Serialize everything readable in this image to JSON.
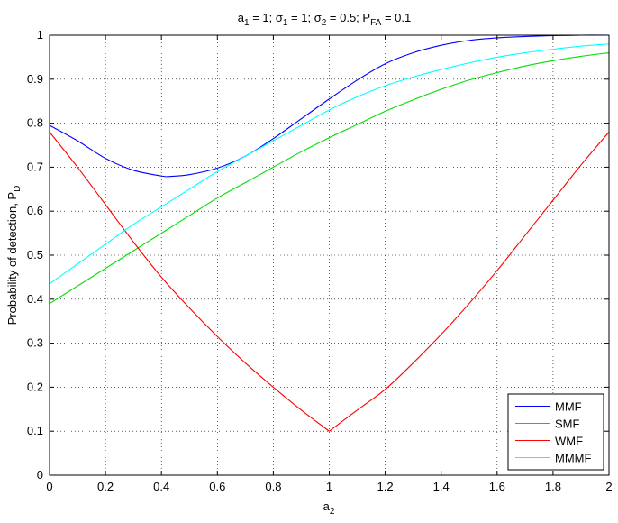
{
  "chart_data": {
    "type": "line",
    "title": "a1 = 1;     σ1 = 1;     σ2 = 0.5;     PFA = 0.1",
    "xlabel": "a2",
    "ylabel": "Probability of detection, PD",
    "xlim": [
      0,
      2
    ],
    "ylim": [
      0,
      1
    ],
    "xticks": [
      0,
      0.2,
      0.4,
      0.6,
      0.8,
      1,
      1.2,
      1.4,
      1.6,
      1.8,
      2
    ],
    "xtick_labels": [
      "0",
      "0.2",
      "0.4",
      "0.6",
      "0.8",
      "1",
      "1.2",
      "1.4",
      "1.6",
      "1.8",
      "2"
    ],
    "yticks": [
      0,
      0.1,
      0.2,
      0.3,
      0.4,
      0.5,
      0.6,
      0.7,
      0.8,
      0.9,
      1
    ],
    "ytick_labels": [
      "0",
      "0.1",
      "0.2",
      "0.3",
      "0.4",
      "0.5",
      "0.6",
      "0.7",
      "0.8",
      "0.9",
      "1"
    ],
    "grid": true,
    "grid_style": "dotted",
    "legend_position": "bottom-right",
    "series": [
      {
        "name": "MMF",
        "color": "#0000ff",
        "x": [
          0,
          0.1,
          0.2,
          0.3,
          0.4,
          0.43,
          0.5,
          0.6,
          0.7,
          0.8,
          0.9,
          1.0,
          1.1,
          1.2,
          1.3,
          1.4,
          1.5,
          1.6,
          1.7,
          1.8,
          1.9,
          2.0
        ],
        "y": [
          0.795,
          0.76,
          0.72,
          0.693,
          0.68,
          0.679,
          0.683,
          0.698,
          0.725,
          0.765,
          0.81,
          0.855,
          0.898,
          0.935,
          0.96,
          0.977,
          0.988,
          0.994,
          0.997,
          0.999,
          1.0,
          1.0
        ]
      },
      {
        "name": "SMF",
        "color": "#00dd00",
        "x": [
          0,
          0.1,
          0.2,
          0.3,
          0.4,
          0.5,
          0.6,
          0.7,
          0.8,
          0.9,
          1.0,
          1.1,
          1.2,
          1.3,
          1.4,
          1.5,
          1.6,
          1.7,
          1.8,
          1.9,
          2.0
        ],
        "y": [
          0.39,
          0.43,
          0.47,
          0.51,
          0.55,
          0.59,
          0.63,
          0.665,
          0.7,
          0.735,
          0.767,
          0.797,
          0.827,
          0.853,
          0.877,
          0.898,
          0.915,
          0.93,
          0.942,
          0.952,
          0.96
        ]
      },
      {
        "name": "WMF",
        "color": "#ff0000",
        "x": [
          0,
          0.1,
          0.2,
          0.3,
          0.4,
          0.5,
          0.6,
          0.7,
          0.8,
          0.9,
          1.0,
          1.1,
          1.2,
          1.3,
          1.4,
          1.5,
          1.6,
          1.7,
          1.8,
          1.9,
          2.0
        ],
        "y": [
          0.78,
          0.7,
          0.615,
          0.53,
          0.45,
          0.38,
          0.315,
          0.255,
          0.2,
          0.148,
          0.1,
          0.148,
          0.195,
          0.255,
          0.32,
          0.39,
          0.465,
          0.545,
          0.625,
          0.705,
          0.78
        ]
      },
      {
        "name": "MMMF",
        "color": "#00ffff",
        "x": [
          0,
          0.1,
          0.2,
          0.3,
          0.4,
          0.5,
          0.6,
          0.7,
          0.8,
          0.9,
          1.0,
          1.1,
          1.2,
          1.3,
          1.4,
          1.5,
          1.6,
          1.7,
          1.8,
          1.9,
          2.0
        ],
        "y": [
          0.435,
          0.48,
          0.525,
          0.57,
          0.61,
          0.65,
          0.69,
          0.725,
          0.76,
          0.795,
          0.83,
          0.86,
          0.885,
          0.905,
          0.922,
          0.937,
          0.95,
          0.96,
          0.968,
          0.975,
          0.98
        ]
      }
    ]
  }
}
